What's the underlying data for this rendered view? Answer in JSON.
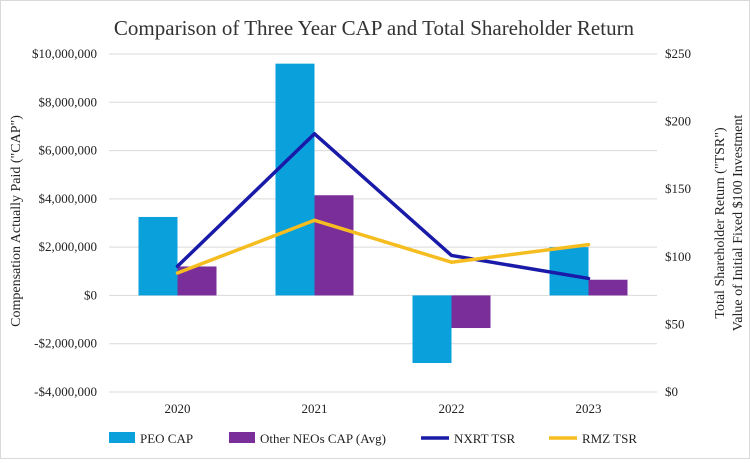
{
  "chart_data": {
    "type": "bar+line",
    "title": "Comparison of Three Year CAP and Total Shareholder Return",
    "categories": [
      "2020",
      "2021",
      "2022",
      "2023"
    ],
    "y_left": {
      "label": "Compensation Actually Paid (\"CAP\")",
      "min": -4000000,
      "max": 10000000,
      "ticks": [
        -4000000,
        -2000000,
        0,
        2000000,
        4000000,
        6000000,
        8000000,
        10000000
      ],
      "tick_labels": [
        "-$4,000,000",
        "-$2,000,000",
        "$0",
        "$2,000,000",
        "$4,000,000",
        "$6,000,000",
        "$8,000,000",
        "$10,000,000"
      ]
    },
    "y_right": {
      "label_line1": "Total Shareholder Return (\"TSR\")",
      "label_line2": "Value of Initial Fixed $100 Investment",
      "min": 0,
      "max": 250,
      "ticks": [
        0,
        50,
        100,
        150,
        200,
        250
      ],
      "tick_labels": [
        "$0",
        "$50",
        "$100",
        "$150",
        "$200",
        "$250"
      ]
    },
    "bar_series": [
      {
        "name": "PEO CAP",
        "color": "#0aa0dc",
        "values": [
          3250000,
          9600000,
          -2800000,
          2000000
        ]
      },
      {
        "name": "Other NEOs CAP (Avg)",
        "color": "#7a2e9a",
        "values": [
          1200000,
          4150000,
          -1350000,
          650000
        ]
      }
    ],
    "line_series": [
      {
        "name": "NXRT TSR",
        "color": "#1a1aa8",
        "values": [
          93,
          191,
          101,
          84
        ]
      },
      {
        "name": "RMZ TSR",
        "color": "#f5bd1f",
        "values": [
          88,
          127,
          96,
          109
        ]
      }
    ],
    "grid": true,
    "legend": "bottom"
  }
}
